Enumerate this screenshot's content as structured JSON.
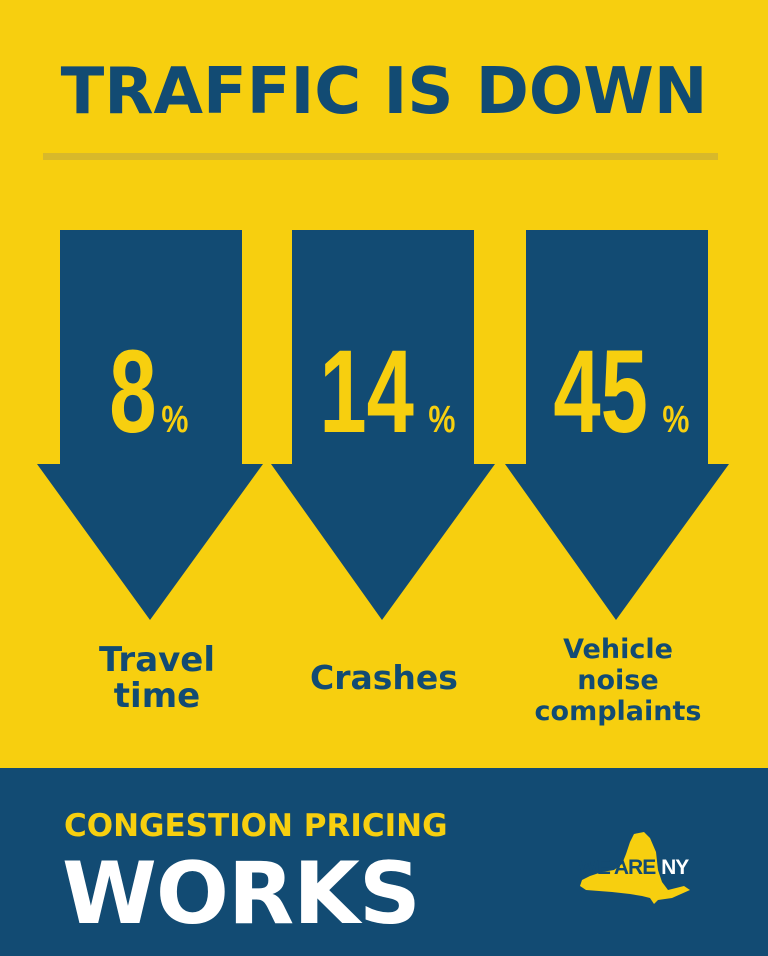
{
  "title": "TRAFFIC IS DOWN",
  "stats": [
    {
      "value": "8",
      "unit": "%",
      "label_lines": [
        "Travel",
        "time"
      ]
    },
    {
      "value": "14",
      "unit": "%",
      "label_lines": [
        "Crashes"
      ]
    },
    {
      "value": "45",
      "unit": "%",
      "label_lines": [
        "Vehicle",
        "noise",
        "complaints"
      ]
    }
  ],
  "footer": {
    "subtitle": "CONGESTION PRICING",
    "headline": "WORKS"
  },
  "logo": {
    "we_are": "WE ARE",
    "ny": "NY"
  },
  "colors": {
    "background": "#f7cf0f",
    "brand_blue": "#124b73",
    "white": "#ffffff"
  },
  "icons": [
    "down-arrow-icon",
    "new-york-state-icon"
  ]
}
